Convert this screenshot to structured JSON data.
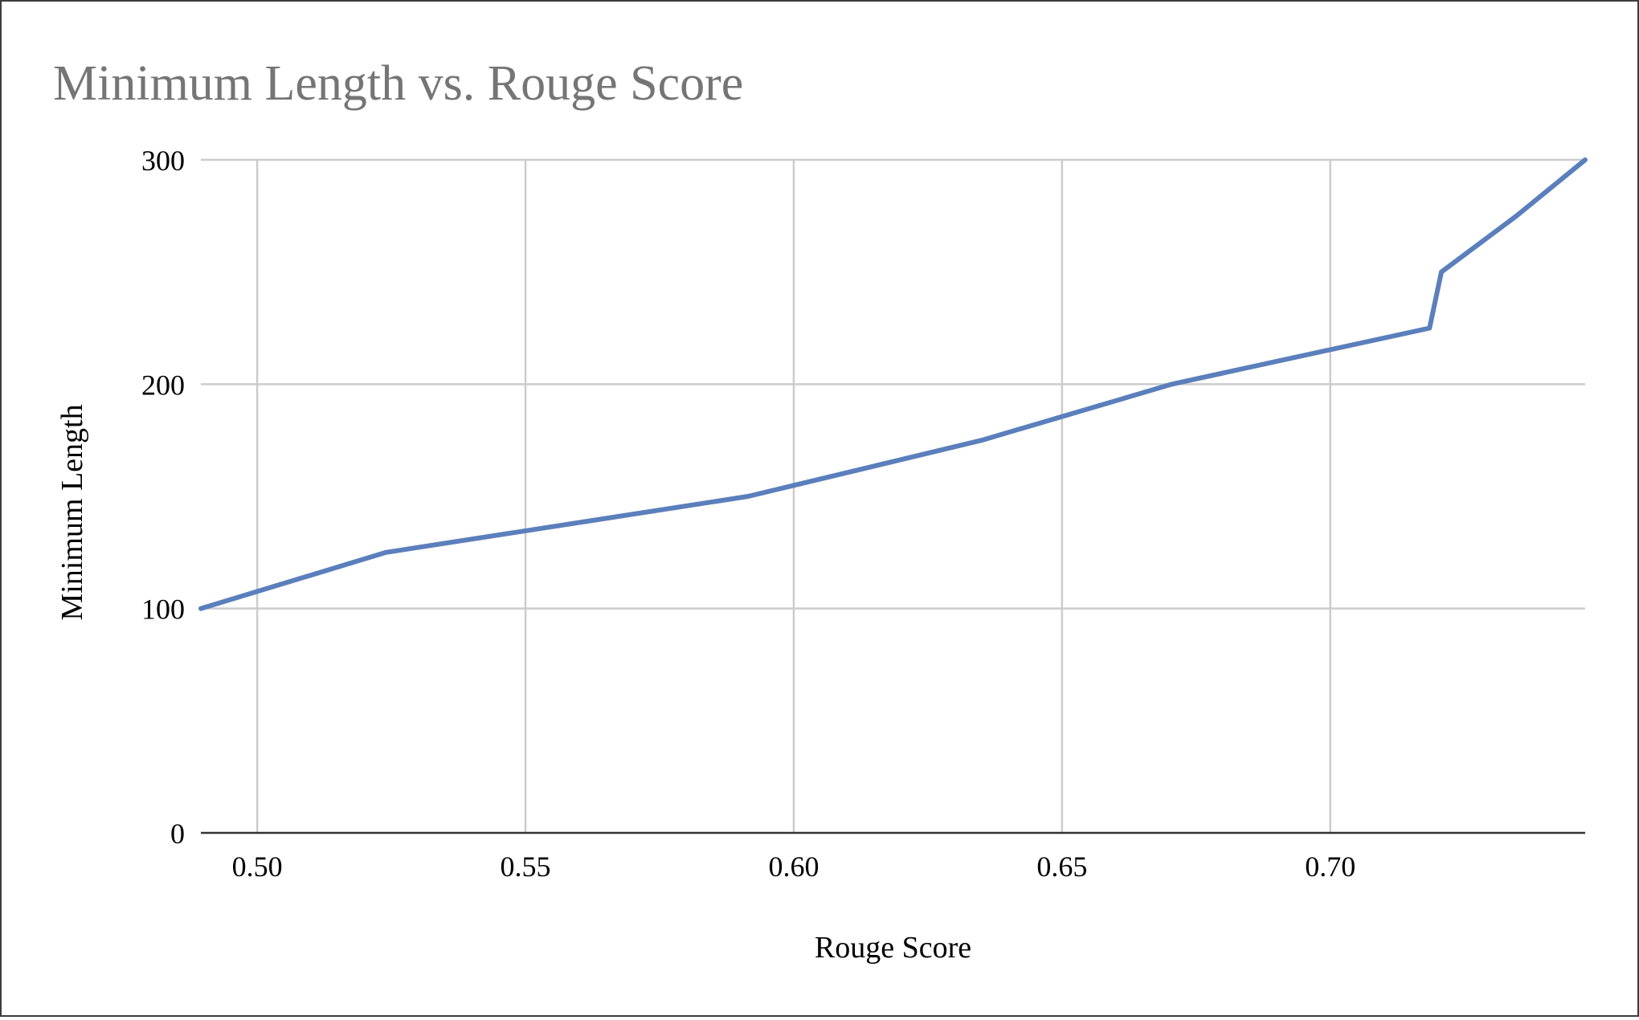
{
  "chart_data": {
    "type": "line",
    "title": "Minimum Length vs. Rouge Score",
    "xlabel": "Rouge Score",
    "ylabel": "Minimum Length",
    "xlim": [
      0.4895,
      0.7475
    ],
    "ylim": [
      0,
      300
    ],
    "x_ticks": [
      0.5,
      0.55,
      0.6,
      0.65,
      0.7
    ],
    "x_tick_labels": [
      "0.50",
      "0.55",
      "0.60",
      "0.65",
      "0.70"
    ],
    "y_ticks": [
      0,
      100,
      200,
      300
    ],
    "y_tick_labels": [
      "0",
      "100",
      "200",
      "300"
    ],
    "grid": true,
    "legend": "none",
    "series": [
      {
        "color": "#5b7fbc",
        "points": [
          {
            "x": 0.4895,
            "y": 100
          },
          {
            "x": 0.524,
            "y": 125
          },
          {
            "x": 0.5915,
            "y": 150
          },
          {
            "x": 0.635,
            "y": 175
          },
          {
            "x": 0.6705,
            "y": 200
          },
          {
            "x": 0.7185,
            "y": 225
          },
          {
            "x": 0.7207,
            "y": 250
          },
          {
            "x": 0.7347,
            "y": 275
          },
          {
            "x": 0.7475,
            "y": 300
          }
        ]
      }
    ]
  }
}
